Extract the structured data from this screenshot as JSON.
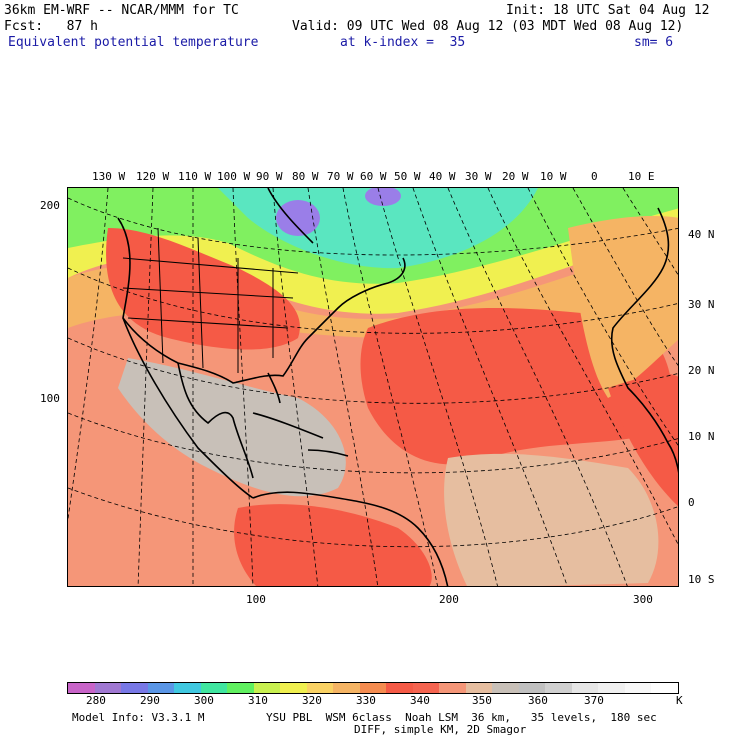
{
  "header": {
    "model": "36km EM-WRF -- NCAR/MMM for TC",
    "init": "Init: 18 UTC Sat 04 Aug 12",
    "fcst": "Fcst:   87 h",
    "valid": "Valid: 09 UTC Wed 08 Aug 12 (03 MDT Wed 08 Aug 12)",
    "field": "Equivalent potential temperature",
    "level": "at k-index =  35",
    "smooth": "sm= 6"
  },
  "axes": {
    "top_lon": [
      "130 W",
      "120 W",
      "110 W",
      "100 W",
      "90 W",
      "80 W",
      "70 W",
      "60 W",
      "50 W",
      "40 W",
      "30 W",
      "20 W",
      "10 W",
      "0",
      "10 E"
    ],
    "right_lat": [
      "40 N",
      "30 N",
      "20 N",
      "10 N",
      "0",
      "10 S"
    ],
    "left_grid": [
      "200",
      "100"
    ],
    "bottom_grid": [
      "100",
      "200",
      "300"
    ]
  },
  "colorbar": {
    "colors": [
      "#c864c8",
      "#a078d2",
      "#7878e6",
      "#5a96e6",
      "#40c8e0",
      "#40e6a0",
      "#60f060",
      "#c8f050",
      "#f0f050",
      "#fad264",
      "#f5b464",
      "#f58c50",
      "#f55a46",
      "#f56450",
      "#f59678",
      "#e6bea0",
      "#c8c0b8",
      "#c0c0c0",
      "#d0d0d0",
      "#e6e6e6",
      "#f0f0f0",
      "#f8f8f8",
      "#ffffff"
    ],
    "labels": [
      "280",
      "290",
      "300",
      "310",
      "320",
      "330",
      "340",
      "350",
      "360",
      "370"
    ],
    "unit": "K"
  },
  "footer": {
    "line1a": "Model Info: V3.3.1 M",
    "line1b": "YSU PBL  WSM 6class  Noah LSM  36 km,   35 levels,  180 sec",
    "line2": "DIFF, simple KM, 2D Smagor"
  },
  "map": {
    "region": "North Atlantic, North America, Central/South America, West Africa",
    "colors": {
      "cold": "#9a7ee8",
      "cool": "#5ae6c0",
      "green": "#80f060",
      "yellow": "#f0f050",
      "orange": "#f5b464",
      "red": "#f55a46",
      "salmon": "#f59678",
      "tan": "#e6bea0",
      "grey": "#c8c0b8"
    }
  }
}
